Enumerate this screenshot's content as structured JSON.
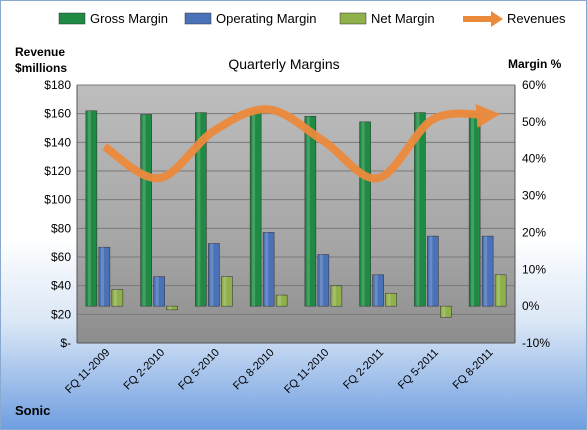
{
  "chart_data": {
    "type": "bar",
    "title": "Quarterly Margins",
    "left_axis_label": [
      "Revenue",
      "$millions"
    ],
    "right_axis_label": "Margin %",
    "company": "Sonic",
    "categories": [
      "FQ 11-2009",
      "FQ 2-2010",
      "FQ 5-2010",
      "FQ 8-2010",
      "FQ 11-2010",
      "FQ 2-2011",
      "FQ 5-2011",
      "FQ 8-2011"
    ],
    "left_ticks": [
      "$-",
      "$20",
      "$40",
      "$60",
      "$80",
      "$100",
      "$120",
      "$140",
      "$160",
      "$180"
    ],
    "right_ticks": [
      "-10%",
      "0%",
      "10%",
      "20%",
      "30%",
      "40%",
      "50%",
      "60%"
    ],
    "left_ylim": [
      0,
      180
    ],
    "right_ylim": [
      -10,
      60
    ],
    "legend_position": "top",
    "series": [
      {
        "name": "Gross Margin",
        "axis": "right",
        "kind": "bar",
        "color": "#1e8a44",
        "values": [
          53,
          52,
          52.5,
          53,
          51.5,
          50,
          52.5,
          52
        ]
      },
      {
        "name": "Operating Margin",
        "axis": "right",
        "kind": "bar",
        "color": "#4a72b8",
        "values": [
          16,
          8,
          17,
          20,
          14,
          8.5,
          19,
          19
        ]
      },
      {
        "name": "Net Margin",
        "axis": "right",
        "kind": "bar",
        "color": "#8fb04a",
        "values": [
          4.5,
          -1,
          8,
          3,
          5.5,
          3.5,
          -3,
          8.5
        ]
      },
      {
        "name": "Revenues",
        "axis": "left",
        "kind": "line",
        "color": "#ec8a3c",
        "values": [
          137,
          115,
          148,
          163,
          141,
          115,
          156,
          159
        ]
      }
    ]
  }
}
